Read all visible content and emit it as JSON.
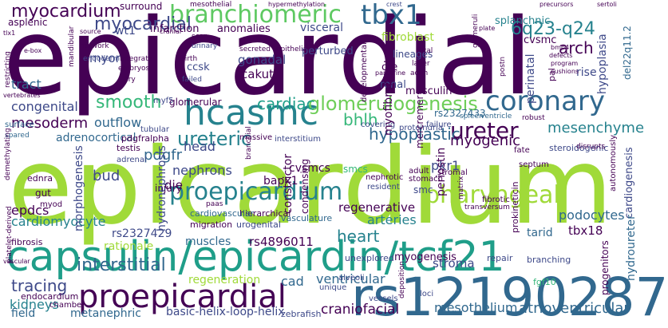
{
  "words": {
    "epicardial": "epicardial",
    "epicardium": "epicardium",
    "capsulin": "capsulin/epicardin/tcf21",
    "rs12190287": "rs12190287",
    "proepicardial": "proepicardial",
    "hcasmc": "hcasmc",
    "coronary": "coronary",
    "proepicardium": "proepicardium",
    "pharyngeal": "pharyngeal",
    "tbx1": "tbx1",
    "branchiomeric": "branchiomeric",
    "q623": "6q23-q24",
    "myocardium": "myocardium",
    "myocardial": "myocardial",
    "ureter": "ureter",
    "ureteric": "ureteric",
    "glomerulogenesis": "glomerulogenesis",
    "cardiac": "cardiac",
    "smooth": "smooth",
    "arch": "arch",
    "heart": "heart",
    "interstitial": "interstitial",
    "tracing": "tracing",
    "bhlh": "bhlh",
    "hypoplastic": "hypoplastic",
    "mesenchyme": "mesenchyme",
    "myogenic": "myogenic",
    "regenerative": "regenerative",
    "podocytes": "podocytes",
    "tbx18": "tbx18",
    "stroma": "stroma",
    "tarid": "tarid",
    "arteries": "arteries",
    "mesothelium": "mesothelium",
    "atrioventricular": "atrioventricular",
    "craniofacial": "craniofacial",
    "basichelix": "basic-helix-loop-helix",
    "metanephric": "metanephric",
    "kidneys": "kidneys",
    "cad": "cad",
    "ventricular": "ventricular",
    "regeneration": "regeneration",
    "muscles": "muscles",
    "rs4896011": "rs4896011",
    "rs2327429": "rs2327429",
    "cardiomyocyte": "cardiomyocyte",
    "rationale": "rationale",
    "epdcs": "epdcs",
    "bud": "bud",
    "pdgfr": "pdgfr",
    "nephrons": "nephrons",
    "die": "die",
    "bapx1": "bapx1",
    "cvsmcs": "cvsmcs",
    "smcs": "smcs",
    "pkr1": "pkr1",
    "head": "head",
    "adrenocortical": "adrenocortical",
    "outflow": "outflow",
    "congenital": "congenital",
    "mesoderm": "mesoderm",
    "tract": "tract",
    "myor": "myor",
    "gonadal": "gonadal",
    "cakut": "cakut",
    "ccsk": "ccsk",
    "glomerular": "glomerular",
    "infarction": "infarction",
    "anomalies": "anomalies",
    "visceral": "visceral",
    "fibroblast": "fibroblast",
    "splanchnic": "splanchnic",
    "cvsmc": "cvsmc",
    "lineages": "lineages",
    "cre": "cre",
    "renal": "renal",
    "musculin": "musculin",
    "perturbed": "perturbed",
    "surround": "surround",
    "asplenic": "asplenic",
    "wt1": "wt1",
    "rise": "rise",
    "smc": "smc",
    "rs2327433": "rs2327433",
    "hierarchical": "hierarchical",
    "cardiovascular": "cardiovascular",
    "vasculature": "vasculature",
    "migration": "migration",
    "urogenital": "urogenital",
    "myogenesis": "myogenesis",
    "unexplored": "unexplored",
    "fgf10": "fgf10",
    "repair": "repair",
    "branching": "branching",
    "fibrosis": "fibrosis",
    "endocardium": "endocardium",
    "field": "field",
    "chamber": "chamber",
    "zebrafish": "zebrafish",
    "vessels": "vessels",
    "loci": "loci",
    "unique": "unique",
    "alveoli": "alveoli",
    "injury": "injury",
    "gut": "gut",
    "ednra": "ednra",
    "testis": "testis",
    "pdgfralpha": "pdgfralpha",
    "adrenal": "adrenal",
    "massive": "massive",
    "interstitium": "interstitium",
    "tubular": "tubular",
    "surface": "surface",
    "nephrotic": "nephrotic",
    "resident": "resident",
    "adult": "adult",
    "stomach": "stomach",
    "proteinuria": "proteinuria",
    "steroidogenic": "steroidogenic",
    "fate": "fate",
    "septum": "septum",
    "stromal": "stromal",
    "fibrotic": "fibrotic",
    "transversum": "transversum",
    "covering": "covering",
    "failure": "failure",
    "spleen": "spleen",
    "ventricle": "ventricle",
    "robust": "robust",
    "disrupts": "disrupts",
    "paas": "paas",
    "myod": "myod",
    "myf5": "myf5",
    "spared": "spared",
    "network": "network",
    "endoderm": "endoderm",
    "integrate": "integrate",
    "embryos": "embryos",
    "sry": "sry",
    "birth": "birth",
    "failed": "failed",
    "scar": "scar",
    "urinary": "urinary",
    "secreted": "secreted",
    "epithelia": "epithelia",
    "fetal": "fetal",
    "layer": "layer",
    "actin": "actin",
    "mesothelial": "mesothelial",
    "hypermethylation": "hypermethylation",
    "crest": "crest",
    "precursors": "precursors",
    "sertoli": "sertoli",
    "plate": "plate",
    "bmp4": "bmp4",
    "defects": "defects",
    "program": "program",
    "cushions": "cushions",
    "tlx1": "tlx1",
    "ebox": "e-box",
    "source": "source",
    "vertebrates": "vertebrates",
    "cranial": "cranial",
    "paracrine": "paracrine",
    "platelet": "platelet-derived",
    "vascular": "vascular",
    "myofibroblast": "myofibroblast",
    "hydronephrosis": "hydronephrosis",
    "constrictor": "constrictor",
    "condensing": "condensing",
    "morphogenesis": "morphogenesis",
    "perinatal": "perinatal",
    "hypoplasia": "hypoplasia",
    "periostin": "periostin",
    "cardiogenesis": "cardiogenesis",
    "hydroureter": "hydroureter",
    "progenitors": "progenitors",
    "mercremet": "mercremer",
    "del22q11": "del22q11.2",
    "prokineticin": "prokineticin",
    "autonomously": "autonomously",
    "developmental": "developmental",
    "restricting": "restricting",
    "mandibular": "mandibular",
    "demethylating": "demethylating",
    "postn": "postn",
    "neck": "neck",
    "pal": "pal",
    "glomeruli": "glomeruli",
    "deposition": "deposition",
    "matrix": "matrix",
    "branchial": "branchial"
  }
}
